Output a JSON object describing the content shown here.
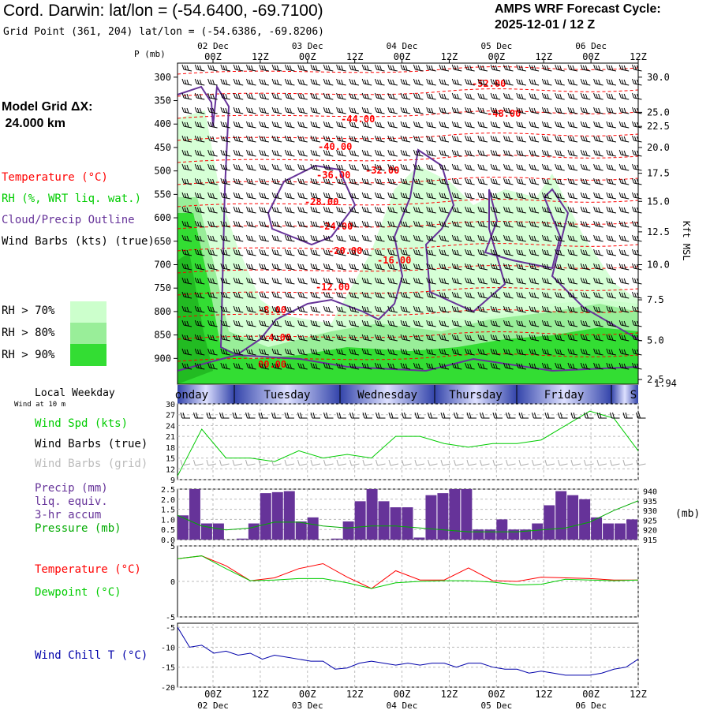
{
  "header": {
    "title": "Cord. Darwin:  lat/lon = (-54.6400, -69.7100)",
    "subtitle": "Grid Point (361, 204) lat/lon = (-54.6386, -69.8206)",
    "cycle_line1": "AMPS WRF Forecast Cycle:",
    "cycle_line2": "2025-12-01 / 12  Z"
  },
  "left": {
    "model_grid_line1": "Model Grid ΔX:",
    "model_grid_line2": " 24.000 km",
    "leg_temperature": "Temperature (°C)",
    "leg_rh": "RH (%, WRT liq. wat.)",
    "leg_cloud": "Cloud/Precip Outline",
    "leg_wind": "Wind Barbs (kts) (true)",
    "rh70": "RH > 70%",
    "rh80": "RH > 80%",
    "rh90": "RH > 90%",
    "p_unit": "P (mb)",
    "local_weekday": "Local Weekday",
    "wind10m": "Wind at 10 m",
    "leg_wspd": "Wind Spd (kts)",
    "leg_barbs_true": "Wind Barbs (true)",
    "leg_barbs_grid": "Wind Barbs (grid)",
    "leg_precip1": "Precip (mm)",
    "leg_precip2": "liq. equiv.",
    "leg_precip3": "3-hr accum",
    "leg_pressure": "Pressure (mb)",
    "leg_temp2": "Temperature (°C)",
    "leg_dew": "Dewpoint (°C)",
    "leg_wchill": "Wind Chill T (°C)"
  },
  "right": {
    "kft_label": "Kft MSL",
    "mb_label": "(mb)",
    "bottom_height": "1.94"
  },
  "colors": {
    "temperature": "#ff0000",
    "rh70": "#ccffcc",
    "rh80": "#99ee99",
    "rh90": "#33dd33",
    "cloud": "#663399",
    "wspd": "#00cc00",
    "precip": "#663399",
    "pressure": "#00aa00",
    "dewpoint": "#00cc00",
    "windchill": "#0000aa",
    "weekday_band": "#6677bb"
  },
  "chart_data": [
    {
      "type": "heatmap",
      "name": "cross-section",
      "pressure_ticks": [
        300,
        350,
        400,
        450,
        500,
        550,
        600,
        650,
        700,
        750,
        800,
        850,
        900
      ],
      "height_ticks_kft": [
        "30.0",
        "25.0",
        "22.5",
        "20.0",
        "17.5",
        "15.0",
        "12.5",
        "10.0",
        "7.5",
        "5.0",
        "2.5"
      ],
      "height_tick_pressures": [
        300,
        375,
        405,
        450,
        505,
        565,
        630,
        700,
        775,
        862,
        945
      ],
      "time_ticks_top": [
        "00Z",
        "12Z",
        "00Z",
        "12Z",
        "00Z",
        "12Z",
        "00Z",
        "12Z",
        "00Z",
        "12Z"
      ],
      "date_labels": [
        "02 Dec",
        "03 Dec",
        "04 Dec",
        "05 Dec",
        "06 Dec"
      ],
      "temperature_contours": [
        "-52.00",
        "-48.00",
        "-44.00",
        "-40.00",
        "-36.00",
        "-32.00",
        "-28.00",
        "-24.00",
        "-20.00",
        "-16.00",
        "-12.00",
        "-8.00",
        "-4.00",
        "00.00"
      ],
      "ylim_mb": [
        270,
        955
      ]
    },
    {
      "type": "table",
      "name": "weekday-band",
      "days": [
        "onday",
        "Tuesday",
        "Wednesday",
        "Thursday",
        "Friday",
        "S"
      ]
    },
    {
      "type": "line",
      "name": "wind-speed",
      "ylabel": "Wind Spd (kts)",
      "yticks": [
        9,
        12,
        15,
        18,
        21,
        24,
        27,
        30
      ],
      "ylim": [
        9,
        30
      ],
      "x_hours": [
        0,
        6,
        12,
        18,
        24,
        30,
        36,
        42,
        48,
        54,
        60,
        66,
        72,
        78,
        84,
        90,
        96,
        102,
        108,
        114
      ],
      "values": [
        10,
        23,
        15,
        15,
        14,
        17,
        15,
        16,
        15,
        21,
        21,
        19,
        18,
        19,
        19,
        20,
        24,
        28,
        26,
        17
      ]
    },
    {
      "type": "bar",
      "name": "precip",
      "ylabel": "Precip (mm)",
      "yticks": [
        "0.0",
        "0.5",
        "1.0",
        "1.5",
        "2.0",
        "2.5"
      ],
      "ylim": [
        0,
        2.5
      ],
      "bar_hours": [
        0,
        3,
        6,
        9,
        12,
        15,
        18,
        21,
        24,
        27,
        30,
        33,
        36,
        39,
        42,
        45,
        48,
        51,
        54,
        57,
        60,
        63,
        66,
        69,
        72,
        75,
        78,
        81,
        84,
        87,
        90,
        93,
        96,
        99,
        102,
        105,
        108,
        111,
        114
      ],
      "bar_values": [
        1.2,
        2.5,
        0.8,
        0.8,
        0.0,
        0.05,
        0.8,
        2.3,
        2.35,
        2.4,
        0.9,
        1.1,
        0.0,
        0.05,
        0.9,
        1.9,
        2.5,
        1.9,
        1.6,
        1.6,
        0.1,
        2.2,
        2.3,
        2.5,
        2.5,
        0.5,
        0.5,
        1.0,
        0.5,
        0.5,
        0.8,
        1.7,
        2.4,
        2.2,
        2.0,
        1.1,
        0.8,
        0.8,
        1.0
      ],
      "pressure_ticks": [
        915,
        920,
        925,
        930,
        935,
        940
      ],
      "pressure_ylim": [
        915,
        941
      ],
      "pressure_hours": [
        0,
        6,
        12,
        18,
        24,
        30,
        36,
        42,
        48,
        54,
        60,
        66,
        72,
        78,
        84,
        90,
        96,
        102,
        108,
        114
      ],
      "pressure_values": [
        927.5,
        922,
        920,
        921,
        924,
        924,
        922,
        921,
        922,
        922,
        921,
        920,
        919,
        919,
        919,
        920,
        921,
        924,
        930,
        935
      ]
    },
    {
      "type": "line",
      "name": "temperature-dewpoint",
      "yticks": [
        "5",
        "0",
        "-5"
      ],
      "ylim": [
        -5,
        5
      ],
      "x_hours": [
        0,
        6,
        12,
        18,
        24,
        30,
        36,
        42,
        48,
        54,
        60,
        66,
        72,
        78,
        84,
        90,
        96,
        102,
        108,
        114
      ],
      "series": [
        {
          "name": "Temperature (°C)",
          "values": [
            3.2,
            3.6,
            2.2,
            0.1,
            0.5,
            1.8,
            2.5,
            0.6,
            -1,
            1.5,
            0.2,
            0.2,
            1.9,
            0.1,
            0,
            0.6,
            0.5,
            0.4,
            0.2,
            0.2
          ]
        },
        {
          "name": "Dewpoint (°C)",
          "values": [
            3.2,
            3.6,
            1.8,
            0.1,
            0.2,
            0.4,
            0.4,
            -0.2,
            -1,
            -0.2,
            0,
            0.1,
            0.1,
            -0.1,
            -0.5,
            -0.4,
            0.3,
            0.2,
            0.1,
            0.2
          ]
        }
      ]
    },
    {
      "type": "line",
      "name": "wind-chill",
      "ylabel": "Wind Chill T (°C)",
      "yticks": [
        "-5",
        "-10",
        "-15",
        "-20"
      ],
      "ylim": [
        -20,
        -4
      ],
      "x_hours": [
        0,
        3,
        6,
        9,
        12,
        15,
        18,
        21,
        24,
        27,
        30,
        33,
        36,
        39,
        42,
        45,
        48,
        51,
        54,
        57,
        60,
        63,
        66,
        69,
        72,
        75,
        78,
        81,
        84,
        87,
        90,
        93,
        96,
        99,
        102,
        105,
        108,
        111,
        114
      ],
      "values": [
        -5,
        -10,
        -9.5,
        -11.5,
        -11,
        -12,
        -11.5,
        -13,
        -12,
        -12.5,
        -13,
        -13.5,
        -13.5,
        -15.5,
        -15.2,
        -14,
        -13.5,
        -14,
        -14.5,
        -14,
        -14.5,
        -14,
        -14,
        -15,
        -14,
        -14,
        -15,
        -15.5,
        -15.5,
        -16.5,
        -16,
        -16.5,
        -17,
        -17,
        -17,
        -16.5,
        -15.5,
        -15,
        -13
      ]
    }
  ]
}
